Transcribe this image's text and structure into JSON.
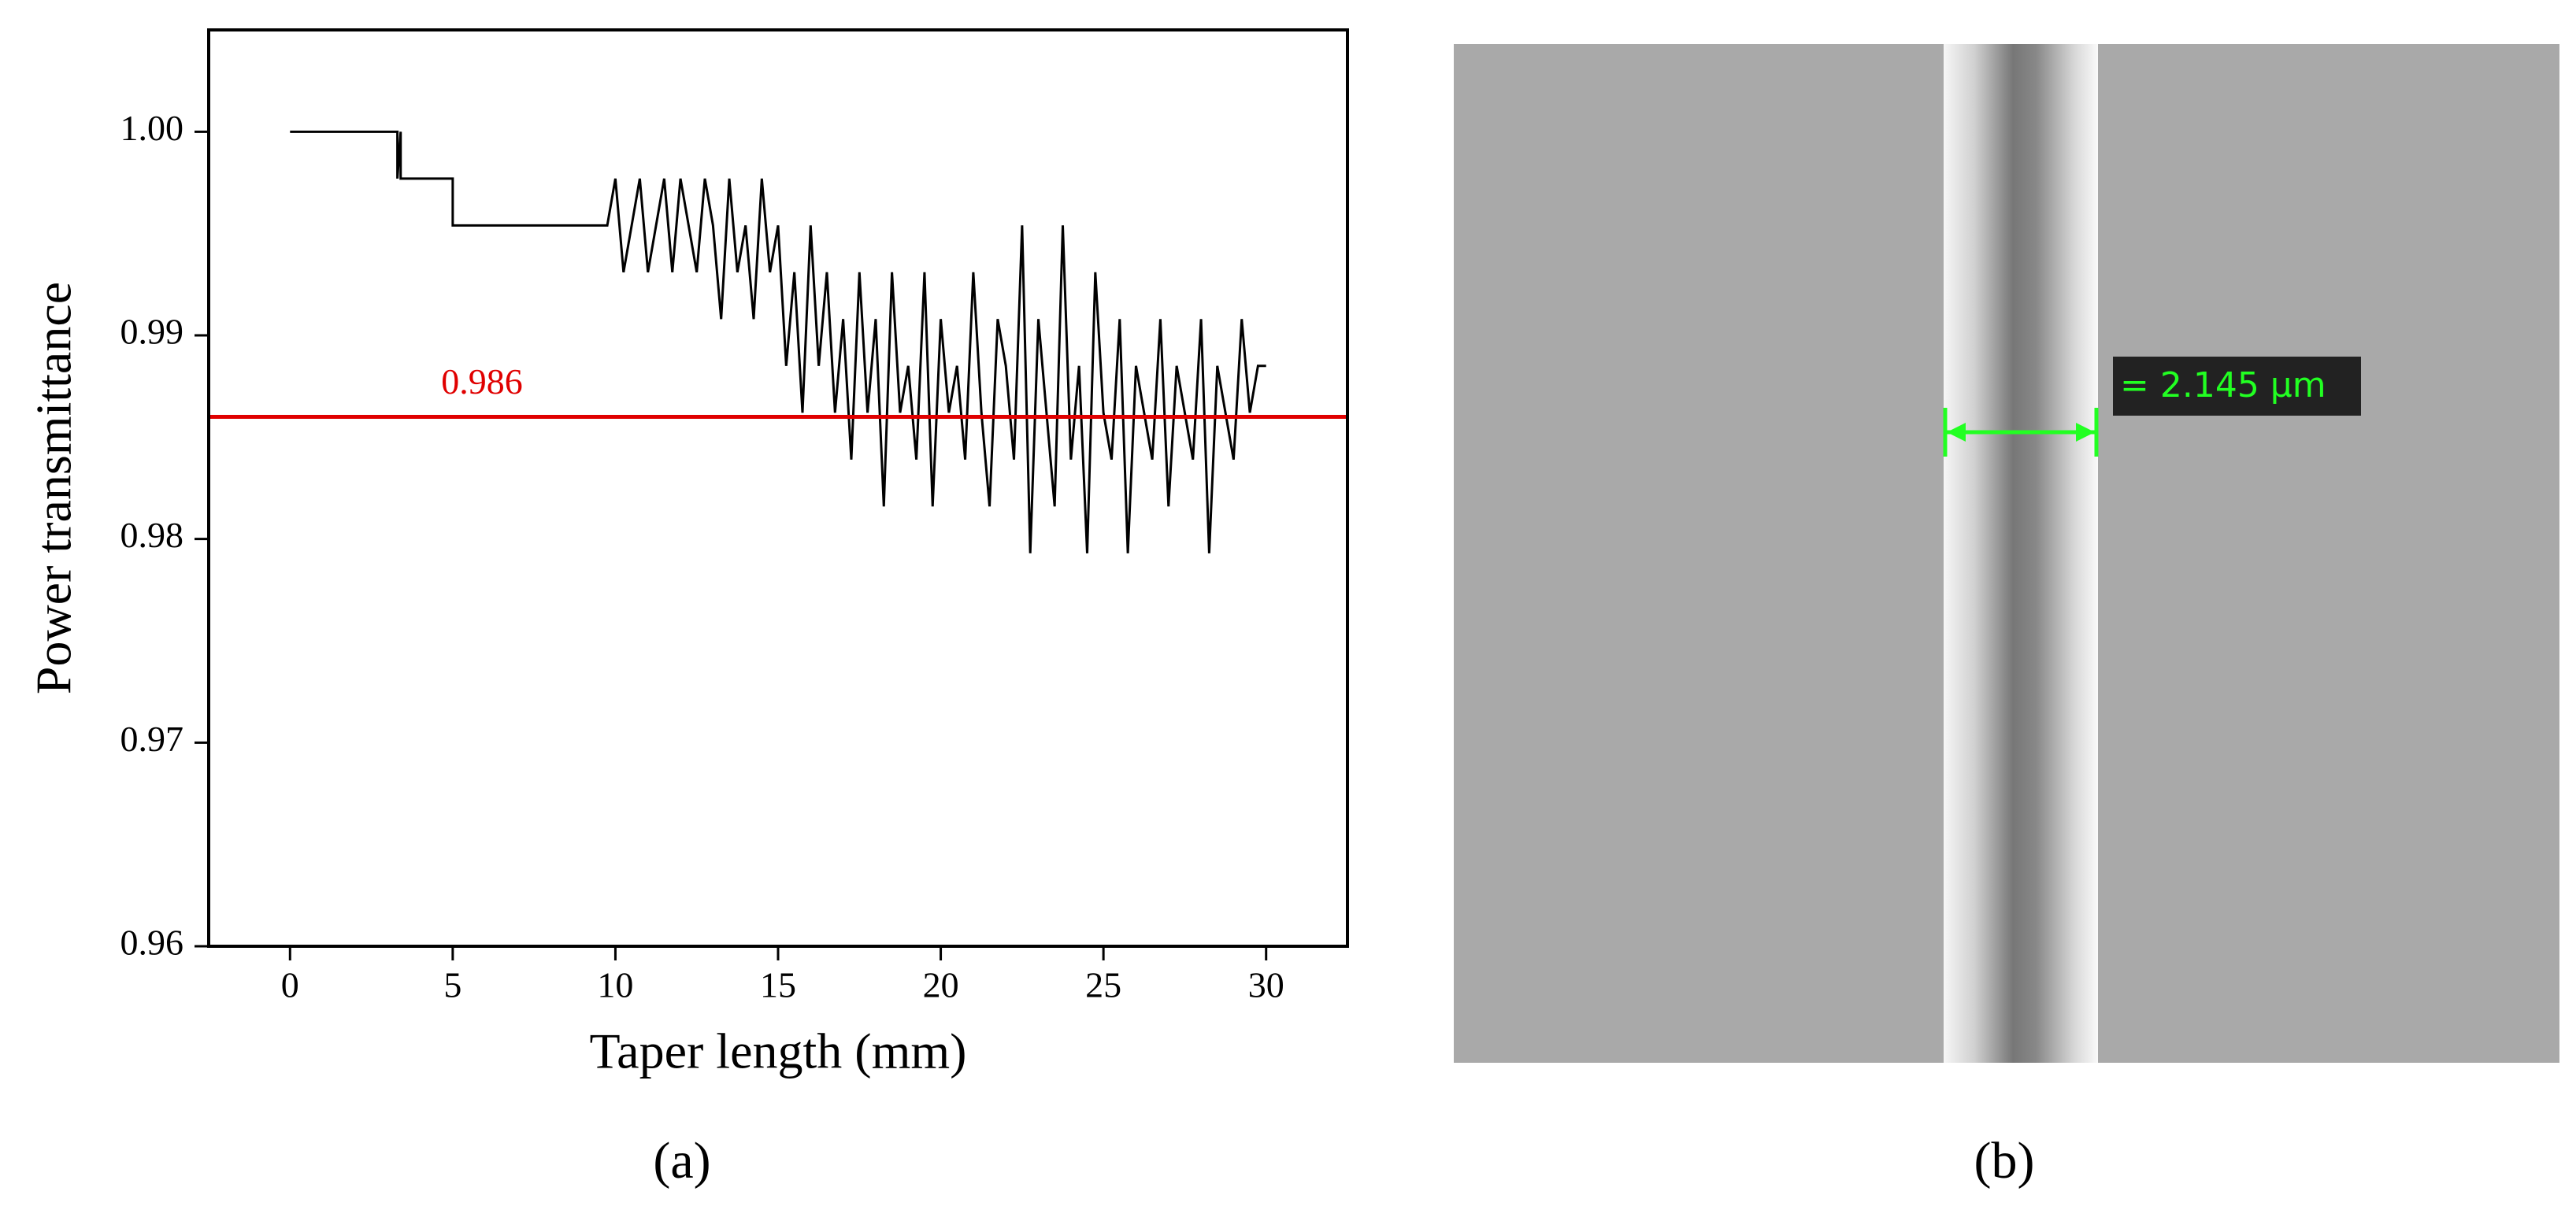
{
  "chart_data": {
    "type": "line",
    "panel_label": "(a)",
    "xlabel": "Taper length (mm)",
    "ylabel": "Power transmittance",
    "color": "#000000",
    "x": [
      0,
      3.3,
      3.3,
      3.4,
      3.4,
      5,
      5,
      9.75,
      10,
      10.25,
      10.5,
      10.75,
      11,
      11.25,
      11.5,
      11.75,
      12,
      12.25,
      12.5,
      12.75,
      13,
      13.25,
      13.5,
      13.75,
      14,
      14.25,
      14.5,
      14.75,
      15,
      15.25,
      15.5,
      15.75,
      16,
      16.25,
      16.5,
      16.75,
      17,
      17.25,
      17.5,
      17.75,
      18,
      18.25,
      18.5,
      18.75,
      19,
      19.25,
      19.5,
      19.75,
      20,
      20.25,
      20.5,
      20.75,
      21,
      21.25,
      21.5,
      21.75,
      22,
      22.25,
      22.5,
      22.75,
      23,
      23.25,
      23.5,
      23.75,
      24,
      24.25,
      24.5,
      24.75,
      25,
      25.25,
      25.5,
      25.75,
      26,
      26.25,
      26.5,
      26.75,
      27,
      27.25,
      27.5,
      27.75,
      28,
      28.25,
      28.5,
      28.75,
      29,
      29.25,
      29.5,
      29.75,
      30
    ],
    "values": [
      1,
      1,
      0.9977,
      1,
      0.9977,
      0.9977,
      0.9954,
      0.9954,
      0.9977,
      0.9931,
      0.9954,
      0.9977,
      0.9931,
      0.9954,
      0.9977,
      0.9931,
      0.9977,
      0.9954,
      0.9931,
      0.9977,
      0.9954,
      0.9908,
      0.9977,
      0.9931,
      0.9954,
      0.9908,
      0.9977,
      0.9931,
      0.9954,
      0.9885,
      0.9931,
      0.9862,
      0.9954,
      0.9885,
      0.9931,
      0.9862,
      0.9908,
      0.9839,
      0.9931,
      0.9862,
      0.9908,
      0.9816,
      0.9931,
      0.9862,
      0.9885,
      0.9839,
      0.9931,
      0.9816,
      0.9908,
      0.9862,
      0.9885,
      0.9839,
      0.9931,
      0.9862,
      0.9816,
      0.9908,
      0.9885,
      0.9839,
      0.9954,
      0.9793,
      0.9908,
      0.9862,
      0.9816,
      0.9954,
      0.9839,
      0.9885,
      0.9793,
      0.9931,
      0.9862,
      0.9839,
      0.9908,
      0.9793,
      0.9885,
      0.9862,
      0.9839,
      0.9908,
      0.9816,
      0.9885,
      0.9862,
      0.9839,
      0.9908,
      0.9793,
      0.9885,
      0.9862,
      0.9839,
      0.9908,
      0.9862,
      0.9885,
      0.9885
    ],
    "hline": {
      "value": 0.986,
      "color": "#e00000"
    },
    "xlim": [
      -2.5,
      32.5
    ],
    "xticks": [
      0,
      5,
      10,
      15,
      20,
      25,
      30
    ],
    "ylim": [
      0.96,
      1.005
    ],
    "yticks": [
      0.96,
      0.97,
      0.98,
      0.99,
      {
        "value": 1,
        "label": "1.00"
      }
    ]
  },
  "image_b": {
    "measurement": "= 2.145 µm",
    "panel_label": "(b)"
  }
}
